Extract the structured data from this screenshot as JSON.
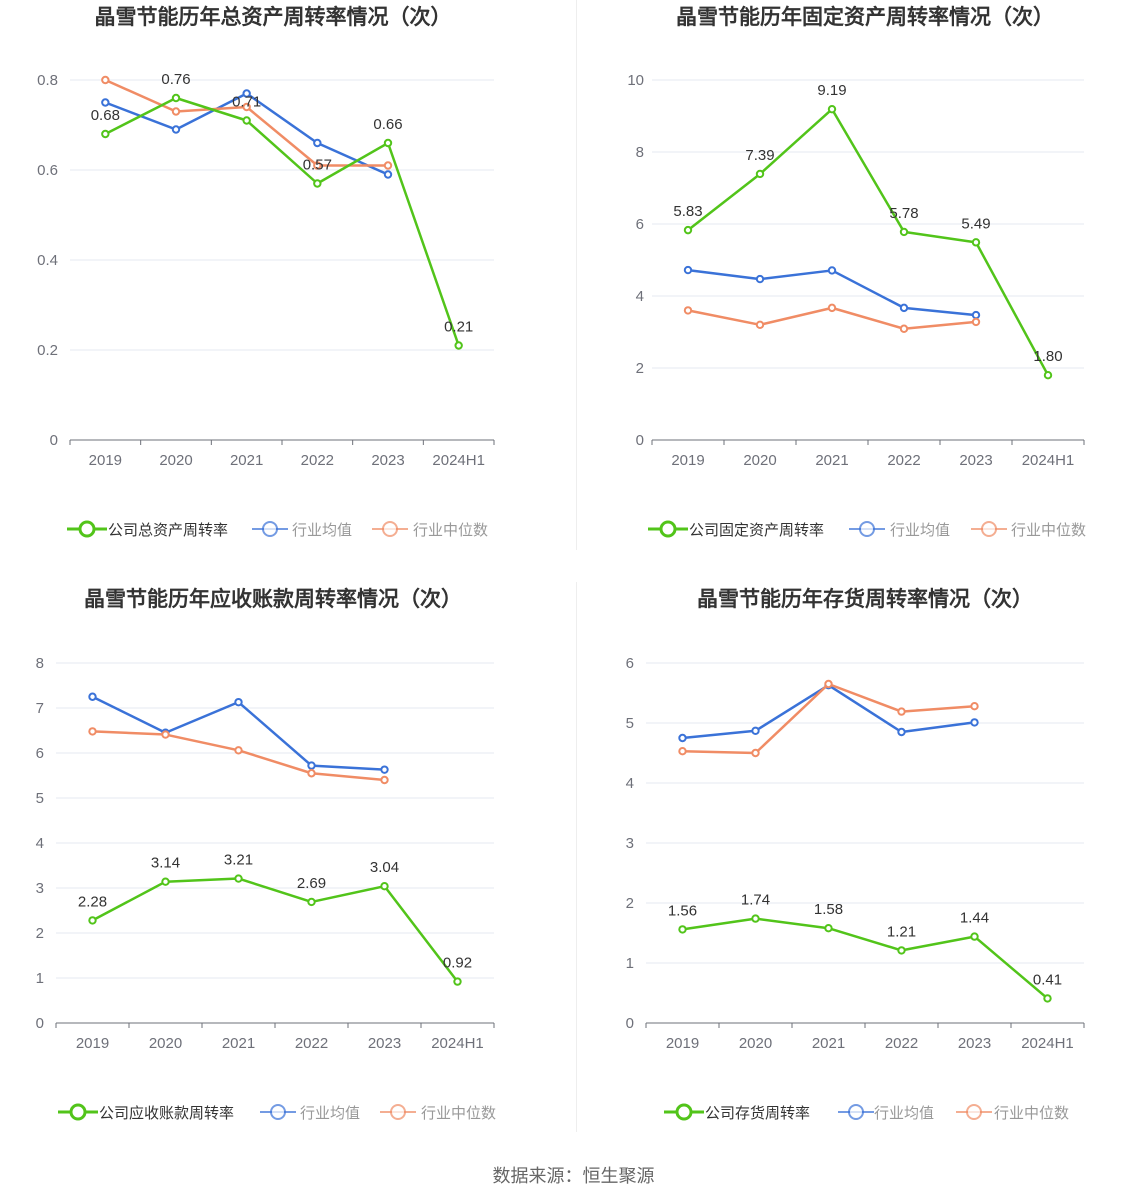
{
  "source_text": "数据来源：恒生聚源",
  "colors": {
    "company": "#52c41a",
    "average": "#3a72d8",
    "median": "#f08c65",
    "grid": "#e6e9f0",
    "axis": "#6e7079"
  },
  "chart_data": [
    {
      "type": "line",
      "title": "晶雪节能历年总资产周转率情况（次）",
      "categories": [
        "2019",
        "2020",
        "2021",
        "2022",
        "2023",
        "2024H1"
      ],
      "ylim": [
        0,
        0.8
      ],
      "yticks": [
        0,
        0.2,
        0.4,
        0.6,
        0.8
      ],
      "yticklabels": [
        "0",
        "0.2",
        "0.4",
        "0.6",
        "0.8"
      ],
      "series": [
        {
          "name": "公司总资产周转率",
          "role": "company",
          "values": [
            0.68,
            0.76,
            0.71,
            0.57,
            0.66,
            0.21
          ],
          "labels": [
            "0.68",
            "0.76",
            "0.71",
            "0.57",
            "0.66",
            "0.21"
          ]
        },
        {
          "name": "行业均值",
          "role": "average",
          "values": [
            0.75,
            0.69,
            0.77,
            0.66,
            0.59,
            null
          ]
        },
        {
          "name": "行业中位数",
          "role": "median",
          "values": [
            0.8,
            0.73,
            0.74,
            0.61,
            0.61,
            null
          ]
        }
      ]
    },
    {
      "type": "line",
      "title": "晶雪节能历年固定资产周转率情况（次）",
      "categories": [
        "2019",
        "2020",
        "2021",
        "2022",
        "2023",
        "2024H1"
      ],
      "ylim": [
        0,
        10
      ],
      "yticks": [
        0,
        2,
        4,
        6,
        8,
        10
      ],
      "yticklabels": [
        "0",
        "2",
        "4",
        "6",
        "8",
        "10"
      ],
      "series": [
        {
          "name": "公司固定资产周转率",
          "role": "company",
          "values": [
            5.83,
            7.39,
            9.19,
            5.78,
            5.49,
            1.8
          ],
          "labels": [
            "5.83",
            "7.39",
            "9.19",
            "5.78",
            "5.49",
            "1.80"
          ]
        },
        {
          "name": "行业均值",
          "role": "average",
          "values": [
            4.72,
            4.47,
            4.71,
            3.67,
            3.47,
            null
          ]
        },
        {
          "name": "行业中位数",
          "role": "median",
          "values": [
            3.6,
            3.2,
            3.67,
            3.09,
            3.28,
            null
          ]
        }
      ]
    },
    {
      "type": "line",
      "title": "晶雪节能历年应收账款周转率情况（次）",
      "categories": [
        "2019",
        "2020",
        "2021",
        "2022",
        "2023",
        "2024H1"
      ],
      "ylim": [
        0,
        8
      ],
      "yticks": [
        0,
        1,
        2,
        3,
        4,
        5,
        6,
        7,
        8
      ],
      "yticklabels": [
        "0",
        "1",
        "2",
        "3",
        "4",
        "5",
        "6",
        "7",
        "8"
      ],
      "series": [
        {
          "name": "公司应收账款周转率",
          "role": "company",
          "values": [
            2.28,
            3.14,
            3.21,
            2.69,
            3.04,
            0.92
          ],
          "labels": [
            "2.28",
            "3.14",
            "3.21",
            "2.69",
            "3.04",
            "0.92"
          ]
        },
        {
          "name": "行业均值",
          "role": "average",
          "values": [
            7.25,
            6.45,
            7.13,
            5.72,
            5.63,
            null
          ]
        },
        {
          "name": "行业中位数",
          "role": "median",
          "values": [
            6.48,
            6.41,
            6.06,
            5.55,
            5.4,
            null
          ]
        }
      ]
    },
    {
      "type": "line",
      "title": "晶雪节能历年存货周转率情况（次）",
      "categories": [
        "2019",
        "2020",
        "2021",
        "2022",
        "2023",
        "2024H1"
      ],
      "ylim": [
        0,
        6
      ],
      "yticks": [
        0,
        1,
        2,
        3,
        4,
        5,
        6
      ],
      "yticklabels": [
        "0",
        "1",
        "2",
        "3",
        "4",
        "5",
        "6"
      ],
      "series": [
        {
          "name": "公司存货周转率",
          "role": "company",
          "values": [
            1.56,
            1.74,
            1.58,
            1.21,
            1.44,
            0.41
          ],
          "labels": [
            "1.56",
            "1.74",
            "1.58",
            "1.21",
            "1.44",
            "0.41"
          ]
        },
        {
          "name": "行业均值",
          "role": "average",
          "values": [
            4.75,
            4.87,
            5.63,
            4.85,
            5.01,
            null
          ]
        },
        {
          "name": "行业中位数",
          "role": "median",
          "values": [
            4.53,
            4.5,
            5.65,
            5.19,
            5.28,
            null
          ]
        }
      ]
    }
  ]
}
